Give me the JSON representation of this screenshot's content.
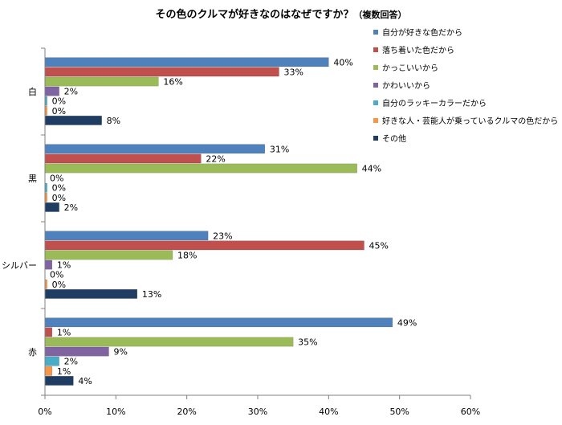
{
  "chart_data": {
    "type": "bar",
    "orientation": "horizontal",
    "title": "その色のクルマが好きなのはなぜですか？",
    "subtitle": "（複数回答）",
    "categories": [
      "白",
      "黒",
      "シルバー",
      "赤"
    ],
    "series": [
      {
        "name": "自分が好きな色だから",
        "color": "#4f81bd",
        "values": [
          40,
          31,
          23,
          49
        ]
      },
      {
        "name": "落ち着いた色だから",
        "color": "#c0504d",
        "values": [
          33,
          22,
          45,
          1
        ]
      },
      {
        "name": "かっこいいから",
        "color": "#9bbb59",
        "values": [
          16,
          44,
          18,
          35
        ]
      },
      {
        "name": "かわいいから",
        "color": "#8064a2",
        "values": [
          2,
          0,
          1,
          9
        ]
      },
      {
        "name": "自分のラッキーカラーだから",
        "color": "#4bacc6",
        "values": [
          0,
          0,
          0,
          2
        ]
      },
      {
        "name": "好きな人・芸能人が乗っているクルマの色だから",
        "color": "#f79646",
        "values": [
          0,
          0,
          0,
          1
        ]
      },
      {
        "name": "その他",
        "color": "#1f3d63",
        "values": [
          8,
          2,
          13,
          4
        ]
      }
    ],
    "value_display": [
      [
        0.3,
        0.3,
        0,
        0.4
      ],
      [
        0.3,
        0.3,
        0.3,
        0.8
      ]
    ],
    "xlim": [
      0,
      60
    ],
    "xticks": [
      "0%",
      "10%",
      "20%",
      "30%",
      "40%",
      "50%",
      "60%"
    ],
    "value_suffix": "%",
    "grid": false,
    "legend_position": "right"
  }
}
